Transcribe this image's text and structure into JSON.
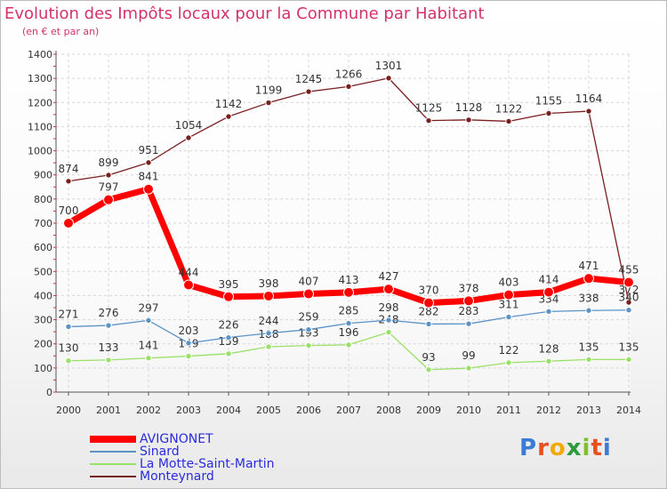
{
  "title": "Evolution des Impôts locaux pour la Commune par Habitant",
  "subtitle": "(en € et par an)",
  "logo_text": "Proxiti",
  "chart_data": {
    "type": "line",
    "x": [
      "2000",
      "2001",
      "2002",
      "2003",
      "2004",
      "2005",
      "2006",
      "2007",
      "2008",
      "2009",
      "2010",
      "2011",
      "2012",
      "2013",
      "2014"
    ],
    "ylim": [
      0,
      1400
    ],
    "yticks": [
      0,
      100,
      200,
      300,
      400,
      500,
      600,
      700,
      800,
      900,
      1000,
      1100,
      1200,
      1300,
      1400
    ],
    "grid": true,
    "legend_position": "bottom-left",
    "series": [
      {
        "name": "Monteynard",
        "color": "#7a1f1f",
        "width": 1.3,
        "values": [
          874,
          899,
          951,
          1054,
          1142,
          1199,
          1245,
          1266,
          1301,
          1125,
          1128,
          1122,
          1155,
          1164,
          372
        ]
      },
      {
        "name": "La Motte-Saint-Martin",
        "color": "#99e066",
        "width": 1.3,
        "values": [
          130,
          133,
          141,
          149,
          159,
          188,
          193,
          196,
          248,
          93,
          99,
          122,
          128,
          135,
          135
        ]
      },
      {
        "name": "Sinard",
        "color": "#5b93c7",
        "width": 1.3,
        "values": [
          271,
          276,
          297,
          203,
          226,
          244,
          259,
          285,
          298,
          282,
          283,
          311,
          334,
          338,
          340
        ]
      },
      {
        "name": "AVIGNONET",
        "color": "#ff0000",
        "width": 7,
        "values": [
          700,
          797,
          841,
          444,
          395,
          398,
          407,
          413,
          427,
          370,
          378,
          403,
          414,
          471,
          455
        ]
      }
    ],
    "legend_order": [
      "AVIGNONET",
      "Sinard",
      "La Motte-Saint-Martin",
      "Monteynard"
    ]
  }
}
